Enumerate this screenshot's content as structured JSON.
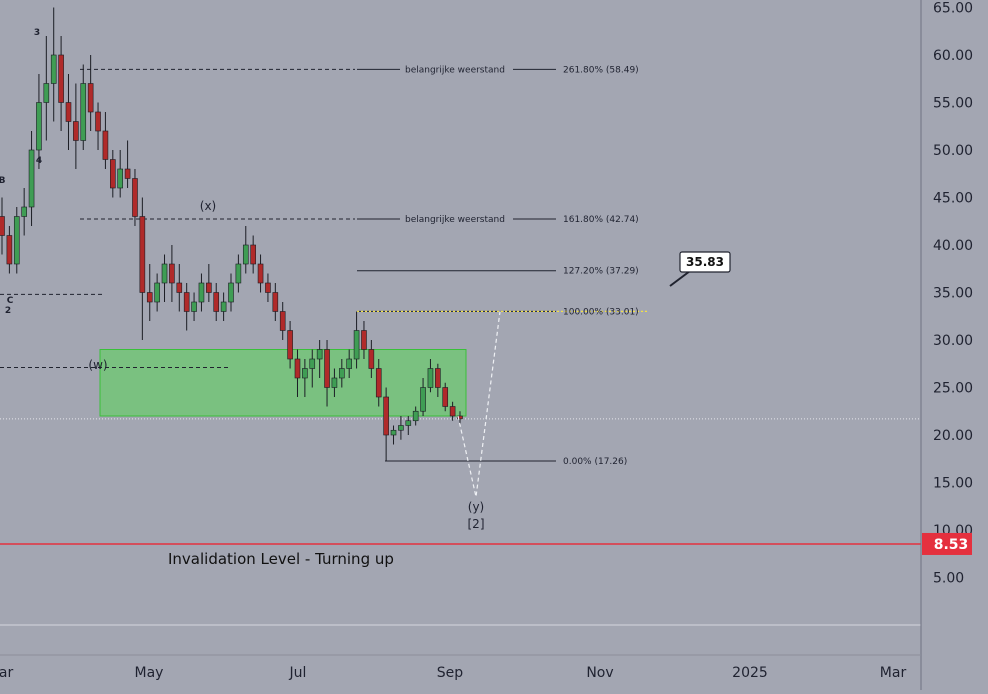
{
  "chart_data": {
    "type": "candlestick",
    "y_ticks": [
      "65.00",
      "60.00",
      "55.00",
      "50.00",
      "45.00",
      "40.00",
      "35.00",
      "30.00",
      "25.00",
      "20.00",
      "15.00",
      "10.00",
      "5.00"
    ],
    "x_ticks": [
      "Mar",
      "May",
      "Jul",
      "Sep",
      "Nov",
      "2025",
      "Mar"
    ],
    "ylim": [
      -2,
      66
    ],
    "fib_levels": [
      {
        "label": "261.80% (58.49)",
        "value": 58.49,
        "note": "belangrijke weerstand"
      },
      {
        "label": "161.80% (42.74)",
        "value": 42.74,
        "note": "belangrijke weerstand"
      },
      {
        "label": "127.20% (37.29)",
        "value": 37.29,
        "note": ""
      },
      {
        "label": "100.00% (33.01)",
        "value": 33.01,
        "note": ""
      },
      {
        "label": "0.00% (17.26)",
        "value": 17.26,
        "note": ""
      }
    ],
    "target_callout": "35.83",
    "invalidation": {
      "value": 8.53,
      "label": "8.53",
      "text": "Invalidation Level - Turning up"
    },
    "support_zone": {
      "low": 22,
      "high": 29
    },
    "current_price_line": 21.7,
    "wave_labels": [
      "3",
      "4",
      "B",
      "C",
      "2",
      "(w)",
      "(x)",
      "(y)",
      "[2]"
    ],
    "series": [
      {
        "values": [
          [
            43,
            45,
            39,
            41
          ],
          [
            41,
            42,
            37,
            38
          ],
          [
            38,
            44,
            37,
            43
          ],
          [
            43,
            46,
            41,
            44
          ],
          [
            44,
            52,
            42,
            50
          ],
          [
            50,
            58,
            48,
            55
          ],
          [
            55,
            62,
            51,
            57
          ],
          [
            57,
            65,
            53,
            60
          ],
          [
            60,
            62,
            52,
            55
          ],
          [
            55,
            58,
            50,
            53
          ],
          [
            53,
            57,
            48,
            51
          ],
          [
            51,
            59,
            50,
            57
          ],
          [
            57,
            60,
            52,
            54
          ],
          [
            54,
            55,
            50,
            52
          ],
          [
            52,
            54,
            48,
            49
          ],
          [
            49,
            50,
            45,
            46
          ],
          [
            46,
            50,
            45,
            48
          ],
          [
            48,
            51,
            46,
            47
          ],
          [
            47,
            48,
            42,
            43
          ],
          [
            43,
            45,
            30,
            35
          ],
          [
            35,
            38,
            32,
            34
          ],
          [
            34,
            37,
            33,
            36
          ],
          [
            36,
            39,
            34,
            38
          ],
          [
            38,
            40,
            34,
            36
          ],
          [
            36,
            38,
            33,
            35
          ],
          [
            35,
            36,
            31,
            33
          ],
          [
            33,
            35,
            32,
            34
          ],
          [
            34,
            37,
            33,
            36
          ],
          [
            36,
            38,
            34,
            35
          ],
          [
            35,
            36,
            32,
            33
          ],
          [
            33,
            35,
            32,
            34
          ],
          [
            34,
            37,
            33,
            36
          ],
          [
            36,
            39,
            35,
            38
          ],
          [
            38,
            42,
            37,
            40
          ],
          [
            40,
            41,
            37,
            38
          ],
          [
            38,
            39,
            35,
            36
          ],
          [
            36,
            37,
            34,
            35
          ],
          [
            35,
            36,
            32,
            33
          ],
          [
            33,
            34,
            30,
            31
          ],
          [
            31,
            32,
            27,
            28
          ],
          [
            28,
            29,
            24,
            26
          ],
          [
            26,
            28,
            24,
            27
          ],
          [
            27,
            29,
            25,
            28
          ],
          [
            28,
            30,
            26,
            29
          ],
          [
            29,
            30,
            23,
            25
          ],
          [
            25,
            27,
            24,
            26
          ],
          [
            26,
            28,
            25,
            27
          ],
          [
            27,
            29,
            26,
            28
          ],
          [
            28,
            33,
            27,
            31
          ],
          [
            31,
            32,
            28,
            29
          ],
          [
            29,
            30,
            26,
            27
          ],
          [
            27,
            28,
            23,
            24
          ],
          [
            24,
            25,
            17.3,
            20
          ],
          [
            20,
            21,
            19,
            20.5
          ],
          [
            20.5,
            22,
            19.5,
            21
          ],
          [
            21,
            22,
            20,
            21.5
          ],
          [
            21.5,
            23,
            21,
            22.5
          ],
          [
            22.5,
            26,
            22,
            25
          ],
          [
            25,
            28,
            24.5,
            27
          ],
          [
            27,
            27.5,
            24,
            25
          ],
          [
            25,
            25.5,
            22.5,
            23
          ],
          [
            23,
            23.5,
            21.5,
            22
          ],
          [
            22,
            22.5,
            21,
            21.7
          ]
        ]
      }
    ]
  }
}
